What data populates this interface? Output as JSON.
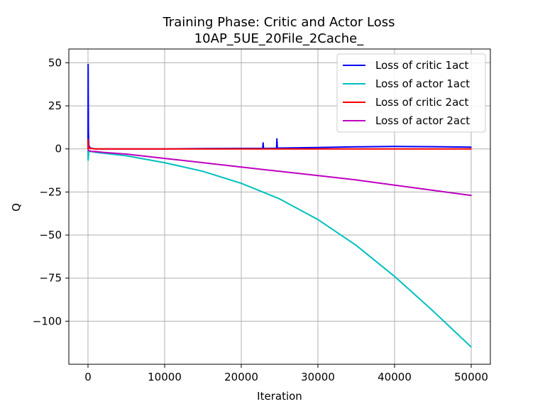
{
  "chart_data": {
    "type": "line",
    "title": "Training Phase: Critic and Actor Loss",
    "subtitle": "10AP_5UE_20File_2Cache_",
    "xlabel": "Iteration",
    "ylabel": "Q",
    "xlim": [
      -2500,
      52500
    ],
    "ylim": [
      -125,
      58
    ],
    "x_ticks": [
      0,
      10000,
      20000,
      30000,
      40000,
      50000
    ],
    "x_tick_labels": [
      "0",
      "10000",
      "20000",
      "30000",
      "40000",
      "50000"
    ],
    "y_ticks": [
      50,
      25,
      0,
      -25,
      -50,
      -75,
      -100
    ],
    "y_tick_labels": [
      "50",
      "25",
      "0",
      "−25",
      "−50",
      "−75",
      "−100"
    ],
    "grid": true,
    "legend_position": "top-right",
    "series": [
      {
        "name": "Loss of critic 1act",
        "color": "#0000ff",
        "x": [
          0,
          20,
          60,
          100,
          300,
          1000,
          5000,
          10000,
          15000,
          20000,
          22800,
          22850,
          22900,
          24600,
          24650,
          24700,
          25000,
          30000,
          35000,
          40000,
          45000,
          50000
        ],
        "y": [
          0,
          49,
          10,
          2,
          0.5,
          0,
          0,
          0,
          0.2,
          0.3,
          0.3,
          3.5,
          0.3,
          0.4,
          5.8,
          0.4,
          0.5,
          0.8,
          1.2,
          1.4,
          1.3,
          1.0
        ]
      },
      {
        "name": "Loss of actor 1act",
        "color": "#00bfbf",
        "x": [
          0,
          20,
          100,
          500,
          1000,
          2000,
          5000,
          10000,
          15000,
          20000,
          25000,
          30000,
          35000,
          40000,
          45000,
          50000
        ],
        "y": [
          -1,
          -6.5,
          -1.5,
          -1.5,
          -2.0,
          -2.5,
          -4.0,
          -8.0,
          -13.0,
          -20.0,
          -29.0,
          -41.0,
          -56.0,
          -74.0,
          -94.0,
          -115.0
        ]
      },
      {
        "name": "Loss of critic 2act",
        "color": "#ff0000",
        "x": [
          0,
          20,
          60,
          200,
          1000,
          10000,
          20000,
          30000,
          40000,
          50000
        ],
        "y": [
          0,
          5.5,
          1.5,
          0.3,
          0,
          0,
          0,
          0,
          0,
          0
        ]
      },
      {
        "name": "Loss of actor 2act",
        "color": "#bf00bf",
        "x": [
          0,
          100,
          500,
          1000,
          2000,
          5000,
          10000,
          15000,
          20000,
          25000,
          30000,
          35000,
          40000,
          45000,
          50000
        ],
        "y": [
          -0.5,
          -1.0,
          -1.5,
          -1.5,
          -2.0,
          -3.0,
          -5.5,
          -8.0,
          -10.5,
          -13.0,
          -15.5,
          -18.0,
          -21.0,
          -24.0,
          -27.0
        ]
      }
    ]
  }
}
